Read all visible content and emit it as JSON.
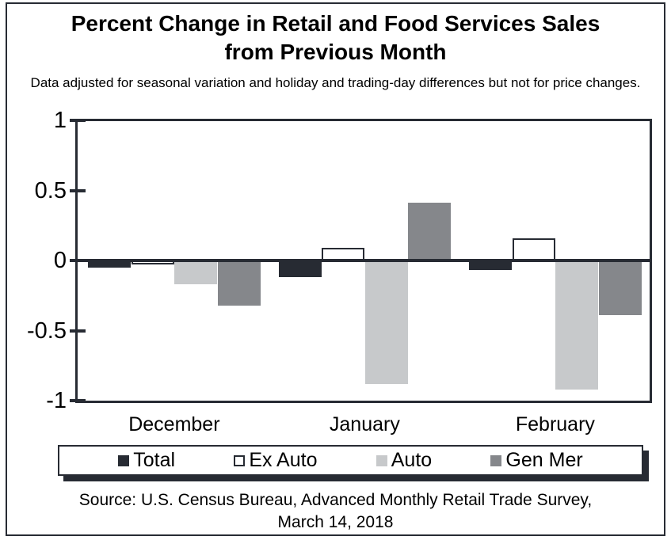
{
  "figure": {
    "title": "Percent Change in Retail and Food Services Sales\nfrom Previous Month",
    "subtitle": "Data adjusted for seasonal variation and holiday and trading-day differences but not for price changes."
  },
  "chart_data": {
    "type": "bar",
    "title": "Percent Change in Retail and Food Services Sales from Previous Month",
    "subtitle": "Data adjusted for seasonal variation and holiday and trading-day differences but not for price changes.",
    "categories": [
      "December",
      "January",
      "February"
    ],
    "series": [
      {
        "name": "Total",
        "style": "filled",
        "color": "#272b33",
        "values": [
          -0.05,
          -0.12,
          -0.07
        ]
      },
      {
        "name": "Ex Auto",
        "style": "outlined",
        "color": "#ffffff",
        "values": [
          -0.03,
          0.09,
          0.16
        ]
      },
      {
        "name": "Auto",
        "style": "filled",
        "color": "#c7c9cb",
        "values": [
          -0.17,
          -0.88,
          -0.92
        ]
      },
      {
        "name": "Gen Mer",
        "style": "filled",
        "color": "#85878b",
        "values": [
          -0.32,
          0.41,
          -0.39
        ]
      }
    ],
    "ylim": [
      -1,
      1
    ],
    "yticks": [
      1,
      0.5,
      0,
      -0.5,
      -1
    ],
    "ytick_labels": [
      "1",
      "0.5",
      "0",
      "-0.5",
      "-1"
    ],
    "grid": false,
    "legend_position": "bottom"
  },
  "source": {
    "text": "Source: U.S. Census Bureau, Advanced Monthly Retail Trade Survey,\nMarch 14, 2018"
  },
  "colors": {
    "dark": "#272b33",
    "light_gray": "#c7c9cb",
    "mid_gray": "#85878b",
    "background": "#ffffff"
  }
}
